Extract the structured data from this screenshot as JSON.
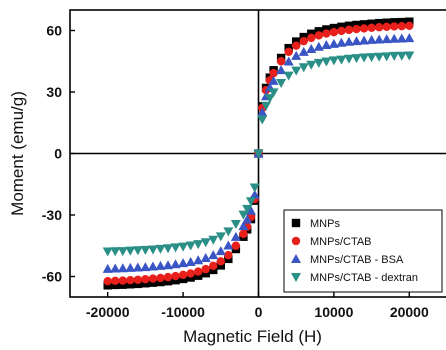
{
  "chart_data": {
    "type": "scatter",
    "title": "",
    "xlabel": "Magnetic Field (H)",
    "ylabel": "Moment (emu/g)",
    "xlim": [
      -25000,
      25000
    ],
    "ylim": [
      -70,
      70
    ],
    "xticks": [
      -20000,
      -10000,
      0,
      10000,
      20000
    ],
    "xtick_labels": [
      "-20000",
      "-10000",
      "0",
      "10000",
      "20000"
    ],
    "yticks": [
      -60,
      -30,
      0,
      30,
      60
    ],
    "ytick_labels": [
      "-60",
      "-30",
      "0",
      "30",
      "60"
    ],
    "zero_lines": true,
    "legend_position": "bottom-right",
    "x": [
      -20000,
      -19000,
      -18000,
      -17000,
      -16000,
      -15000,
      -14000,
      -13000,
      -12000,
      -11000,
      -10000,
      -9000,
      -8000,
      -7000,
      -6000,
      -5000,
      -4000,
      -3000,
      -2000,
      -1500,
      -1000,
      -500,
      0,
      500,
      1000,
      1500,
      2000,
      3000,
      4000,
      5000,
      6000,
      7000,
      8000,
      9000,
      10000,
      11000,
      12000,
      13000,
      14000,
      15000,
      16000,
      17000,
      18000,
      19000,
      20000
    ],
    "series": [
      {
        "name": "MNPs",
        "marker": "square",
        "color": "#000000",
        "values": [
          -64.3,
          -64.1,
          -64.0,
          -63.8,
          -63.6,
          -63.3,
          -63.0,
          -62.7,
          -62.3,
          -61.8,
          -61.2,
          -60.5,
          -59.6,
          -58.4,
          -56.8,
          -54.6,
          -51.4,
          -46.6,
          -40.6,
          -37.0,
          -32.0,
          -23.0,
          0.0,
          23.0,
          32.0,
          37.0,
          40.6,
          46.6,
          51.4,
          54.6,
          56.8,
          58.4,
          59.6,
          60.5,
          61.2,
          61.8,
          62.3,
          62.7,
          63.0,
          63.3,
          63.6,
          63.8,
          64.0,
          64.1,
          64.3
        ]
      },
      {
        "name": "MNPs/CTAB",
        "marker": "circle",
        "color": "#e8201c",
        "values": [
          -62.3,
          -62.1,
          -62.0,
          -61.8,
          -61.6,
          -61.3,
          -61.0,
          -60.7,
          -60.3,
          -59.8,
          -59.2,
          -58.5,
          -57.6,
          -56.4,
          -54.8,
          -52.6,
          -49.6,
          -45.0,
          -39.2,
          -35.7,
          -30.9,
          -22.2,
          0.0,
          22.2,
          30.9,
          35.7,
          39.2,
          45.0,
          49.6,
          52.6,
          54.8,
          56.4,
          57.6,
          58.5,
          59.2,
          59.8,
          60.3,
          60.7,
          61.0,
          61.3,
          61.6,
          61.8,
          62.0,
          62.1,
          62.3
        ]
      },
      {
        "name": "MNPs/CTAB - BSA",
        "marker": "triangle-up",
        "color": "#3a55c4",
        "values": [
          -56.3,
          -56.1,
          -56.0,
          -55.8,
          -55.6,
          -55.4,
          -55.1,
          -54.8,
          -54.5,
          -54.0,
          -53.5,
          -52.9,
          -52.1,
          -51.0,
          -49.6,
          -47.6,
          -44.9,
          -40.7,
          -35.4,
          -32.2,
          -27.9,
          -20.1,
          0.0,
          20.1,
          27.9,
          32.2,
          35.4,
          40.7,
          44.9,
          47.6,
          49.6,
          51.0,
          52.1,
          52.9,
          53.5,
          54.0,
          54.5,
          54.8,
          55.1,
          55.4,
          55.6,
          55.8,
          56.0,
          56.1,
          56.3
        ]
      },
      {
        "name": "MNPs/CTAB - dextran",
        "marker": "triangle-down",
        "color": "#2a8f86",
        "values": [
          -47.8,
          -47.7,
          -47.6,
          -47.4,
          -47.2,
          -47.0,
          -46.8,
          -46.5,
          -46.2,
          -45.8,
          -45.4,
          -44.9,
          -44.2,
          -43.3,
          -42.1,
          -40.4,
          -38.0,
          -34.4,
          -29.8,
          -27.0,
          -23.3,
          -16.6,
          0.0,
          16.6,
          23.3,
          27.0,
          29.8,
          34.4,
          38.0,
          40.4,
          42.1,
          43.3,
          44.2,
          44.9,
          45.4,
          45.8,
          46.2,
          46.5,
          46.8,
          47.0,
          47.2,
          47.4,
          47.6,
          47.7,
          47.8
        ]
      }
    ]
  }
}
